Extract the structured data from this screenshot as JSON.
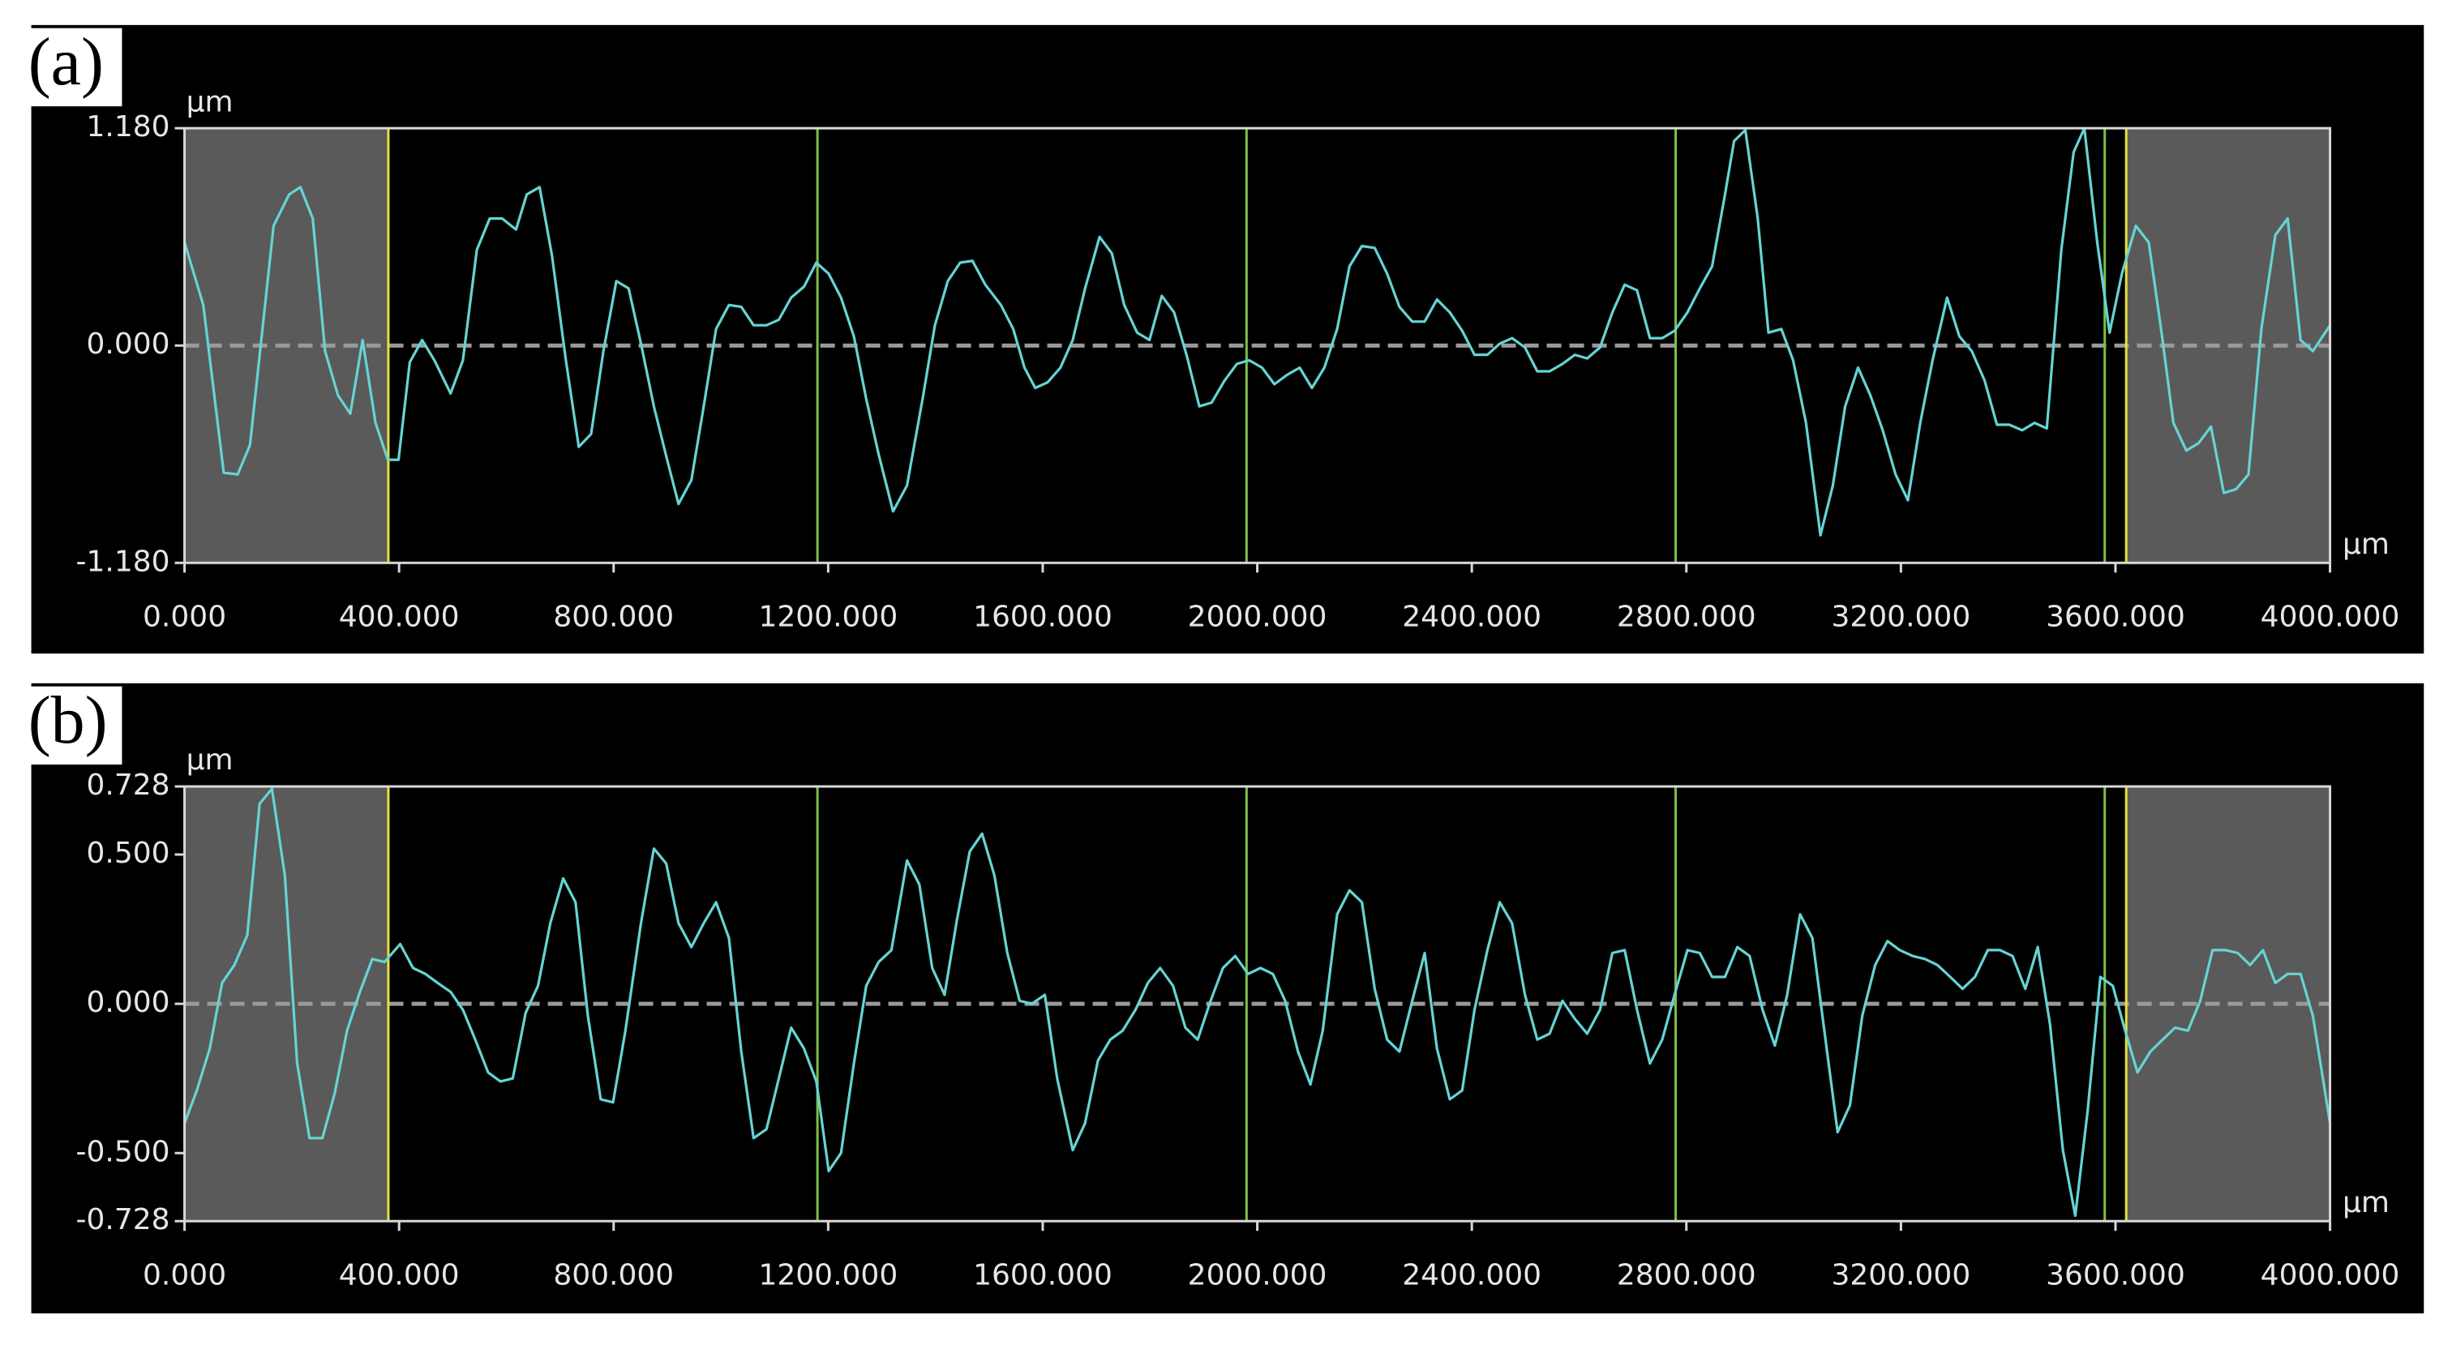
{
  "chart_data": [
    {
      "type": "line",
      "label": "(a)",
      "y_unit": "µm",
      "x_unit": "µm",
      "color": "#66d4d4",
      "background": "#000000",
      "zero_line": true,
      "xlim": [
        0,
        4000
      ],
      "ylim": [
        -1.18,
        1.18
      ],
      "xticks": [
        {
          "value": 0,
          "label": "0.000"
        },
        {
          "value": 400,
          "label": "400.000"
        },
        {
          "value": 800,
          "label": "800.000"
        },
        {
          "value": 1200,
          "label": "1200.000"
        },
        {
          "value": 1600,
          "label": "1600.000"
        },
        {
          "value": 2000,
          "label": "2000.000"
        },
        {
          "value": 2400,
          "label": "2400.000"
        },
        {
          "value": 2800,
          "label": "2800.000"
        },
        {
          "value": 3200,
          "label": "3200.000"
        },
        {
          "value": 3600,
          "label": "3600.000"
        },
        {
          "value": 4000,
          "label": "4000.000"
        }
      ],
      "yticks": [
        {
          "value": 1.18,
          "label": "1.180"
        },
        {
          "value": 0,
          "label": "0.000"
        },
        {
          "value": -1.18,
          "label": "-1.180"
        }
      ],
      "shaded_ranges": [
        [
          0,
          380
        ],
        [
          3620,
          4000
        ]
      ],
      "vlines": [
        {
          "x": 380,
          "color": "#e8e03c"
        },
        {
          "x": 1180,
          "color": "#7cc04a"
        },
        {
          "x": 1980,
          "color": "#7cc04a"
        },
        {
          "x": 2780,
          "color": "#7cc04a"
        },
        {
          "x": 3580,
          "color": "#7cc04a"
        },
        {
          "x": 3620,
          "color": "#e8e03c"
        }
      ],
      "x": [
        0,
        35,
        73,
        99,
        122,
        166,
        195,
        216,
        239,
        262,
        286,
        309,
        332,
        356,
        379,
        399,
        420,
        443,
        466,
        496,
        519,
        545,
        569,
        592,
        618,
        638,
        662,
        685,
        711,
        735,
        758,
        781,
        805,
        828,
        851,
        875,
        898,
        921,
        945,
        968,
        991,
        1015,
        1038,
        1061,
        1085,
        1108,
        1131,
        1155,
        1178,
        1201,
        1224,
        1248,
        1271,
        1294,
        1321,
        1347,
        1376,
        1399,
        1423,
        1446,
        1469,
        1493,
        1522,
        1545,
        1566,
        1586,
        1609,
        1633,
        1656,
        1679,
        1706,
        1729,
        1752,
        1776,
        1799,
        1822,
        1845,
        1869,
        1892,
        1915,
        1939,
        1962,
        1985,
        2009,
        2032,
        2055,
        2079,
        2102,
        2125,
        2149,
        2172,
        2195,
        2219,
        2242,
        2265,
        2289,
        2312,
        2335,
        2359,
        2382,
        2405,
        2429,
        2452,
        2475,
        2499,
        2522,
        2545,
        2569,
        2592,
        2615,
        2639,
        2662,
        2685,
        2708,
        2732,
        2755,
        2778,
        2802,
        2825,
        2848,
        2872,
        2889,
        2910,
        2933,
        2953,
        2977,
        2999,
        3023,
        3050,
        3073,
        3096,
        3120,
        3143,
        3166,
        3190,
        3213,
        3236,
        3259,
        3286,
        3309,
        3332,
        3356,
        3379,
        3402,
        3426,
        3449,
        3472,
        3499,
        3522,
        3542,
        3566,
        3589,
        3612,
        3638,
        3662,
        3685,
        3708,
        3732,
        3755,
        3778,
        3802,
        3825,
        3848,
        3872,
        3898,
        3921,
        3945,
        3968,
        4000
      ],
      "values": [
        0.56,
        0.22,
        -0.69,
        -0.7,
        -0.54,
        0.65,
        0.82,
        0.86,
        0.69,
        -0.03,
        -0.27,
        -0.37,
        0.03,
        -0.42,
        -0.62,
        -0.62,
        -0.09,
        0.03,
        -0.08,
        -0.26,
        -0.08,
        0.52,
        0.69,
        0.69,
        0.63,
        0.82,
        0.86,
        0.49,
        -0.08,
        -0.55,
        -0.48,
        -0.03,
        0.35,
        0.31,
        0.01,
        -0.33,
        -0.6,
        -0.86,
        -0.73,
        -0.33,
        0.09,
        0.22,
        0.21,
        0.11,
        0.11,
        0.14,
        0.26,
        0.32,
        0.45,
        0.39,
        0.26,
        0.05,
        -0.29,
        -0.59,
        -0.9,
        -0.76,
        -0.29,
        0.11,
        0.35,
        0.45,
        0.46,
        0.33,
        0.22,
        0.09,
        -0.12,
        -0.23,
        -0.2,
        -0.12,
        0.03,
        0.31,
        0.59,
        0.5,
        0.22,
        0.07,
        0.03,
        0.27,
        0.18,
        -0.06,
        -0.33,
        -0.31,
        -0.19,
        -0.1,
        -0.08,
        -0.12,
        -0.21,
        -0.16,
        -0.12,
        -0.23,
        -0.12,
        0.09,
        0.43,
        0.54,
        0.53,
        0.39,
        0.21,
        0.13,
        0.13,
        0.25,
        0.18,
        0.08,
        -0.05,
        -0.05,
        0.01,
        0.04,
        -0.01,
        -0.14,
        -0.14,
        -0.1,
        -0.05,
        -0.07,
        -0.01,
        0.18,
        0.33,
        0.3,
        0.04,
        0.04,
        0.08,
        0.18,
        0.31,
        0.43,
        0.82,
        1.11,
        1.17,
        0.69,
        0.07,
        0.09,
        -0.08,
        -0.42,
        -1.03,
        -0.76,
        -0.33,
        -0.12,
        -0.27,
        -0.46,
        -0.7,
        -0.84,
        -0.42,
        -0.08,
        0.26,
        0.05,
        -0.03,
        -0.19,
        -0.43,
        -0.43,
        -0.46,
        -0.42,
        -0.45,
        0.52,
        1.05,
        1.18,
        0.56,
        0.07,
        0.39,
        0.65,
        0.56,
        0.09,
        -0.42,
        -0.57,
        -0.53,
        -0.44,
        -0.8,
        -0.78,
        -0.7,
        0.09,
        0.6,
        0.69,
        0.03,
        -0.03,
        0.11
      ]
    },
    {
      "type": "line",
      "label": "(b)",
      "y_unit": "µm",
      "x_unit": "µm",
      "color": "#66d4d4",
      "background": "#000000",
      "zero_line": true,
      "xlim": [
        0,
        4000
      ],
      "ylim": [
        -0.728,
        0.728
      ],
      "xticks": [
        {
          "value": 0,
          "label": "0.000"
        },
        {
          "value": 400,
          "label": "400.000"
        },
        {
          "value": 800,
          "label": "800.000"
        },
        {
          "value": 1200,
          "label": "1200.000"
        },
        {
          "value": 1600,
          "label": "1600.000"
        },
        {
          "value": 2000,
          "label": "2000.000"
        },
        {
          "value": 2400,
          "label": "2400.000"
        },
        {
          "value": 2800,
          "label": "2800.000"
        },
        {
          "value": 3200,
          "label": "3200.000"
        },
        {
          "value": 3600,
          "label": "3600.000"
        },
        {
          "value": 4000,
          "label": "4000.000"
        }
      ],
      "yticks": [
        {
          "value": 0.728,
          "label": "0.728"
        },
        {
          "value": 0.5,
          "label": "0.500"
        },
        {
          "value": 0,
          "label": "0.000"
        },
        {
          "value": -0.5,
          "label": "-0.500"
        },
        {
          "value": -0.728,
          "label": "-0.728"
        }
      ],
      "shaded_ranges": [
        [
          0,
          380
        ],
        [
          3620,
          4000
        ]
      ],
      "vlines": [
        {
          "x": 380,
          "color": "#e8e03c"
        },
        {
          "x": 1180,
          "color": "#7cc04a"
        },
        {
          "x": 1980,
          "color": "#7cc04a"
        },
        {
          "x": 2780,
          "color": "#7cc04a"
        },
        {
          "x": 3580,
          "color": "#7cc04a"
        },
        {
          "x": 3620,
          "color": "#e8e03c"
        }
      ],
      "x": [
        0,
        23,
        47,
        70,
        93,
        117,
        140,
        163,
        187,
        210,
        233,
        257,
        280,
        303,
        327,
        350,
        373,
        402,
        426,
        449,
        472,
        496,
        519,
        542,
        566,
        589,
        612,
        636,
        659,
        682,
        706,
        729,
        752,
        776,
        799,
        822,
        851,
        875,
        898,
        921,
        945,
        968,
        991,
        1015,
        1038,
        1061,
        1085,
        1108,
        1131,
        1155,
        1178,
        1201,
        1224,
        1248,
        1271,
        1294,
        1318,
        1347,
        1370,
        1394,
        1417,
        1440,
        1464,
        1487,
        1510,
        1534,
        1557,
        1580,
        1604,
        1627,
        1656,
        1679,
        1703,
        1726,
        1749,
        1773,
        1796,
        1819,
        1843,
        1866,
        1889,
        1913,
        1936,
        1959,
        1983,
        2006,
        2029,
        2052,
        2076,
        2099,
        2122,
        2149,
        2172,
        2195,
        2219,
        2242,
        2265,
        2289,
        2312,
        2335,
        2359,
        2382,
        2405,
        2429,
        2452,
        2475,
        2499,
        2522,
        2545,
        2569,
        2592,
        2615,
        2639,
        2662,
        2685,
        2708,
        2732,
        2755,
        2778,
        2802,
        2825,
        2848,
        2872,
        2895,
        2918,
        2942,
        2965,
        2988,
        3012,
        3035,
        3058,
        3082,
        3105,
        3128,
        3152,
        3175,
        3198,
        3222,
        3245,
        3268,
        3292,
        3315,
        3338,
        3362,
        3385,
        3408,
        3432,
        3455,
        3478,
        3502,
        3525,
        3548,
        3572,
        3595,
        3618,
        3641,
        3665,
        3688,
        3711,
        3735,
        3758,
        3781,
        3805,
        3828,
        3851,
        3875,
        3898,
        3921,
        3945,
        3968,
        4000
      ],
      "values": [
        -0.4,
        -0.29,
        -0.15,
        0.07,
        0.13,
        0.23,
        0.67,
        0.72,
        0.43,
        -0.2,
        -0.45,
        -0.45,
        -0.3,
        -0.09,
        0.04,
        0.15,
        0.14,
        0.2,
        0.12,
        0.1,
        0.07,
        0.04,
        -0.02,
        -0.12,
        -0.23,
        -0.26,
        -0.25,
        -0.03,
        0.06,
        0.27,
        0.42,
        0.34,
        -0.04,
        -0.32,
        -0.33,
        -0.09,
        0.27,
        0.52,
        0.47,
        0.27,
        0.19,
        0.27,
        0.34,
        0.22,
        -0.16,
        -0.45,
        -0.42,
        -0.25,
        -0.08,
        -0.15,
        -0.26,
        -0.56,
        -0.5,
        -0.2,
        0.06,
        0.14,
        0.18,
        0.48,
        0.4,
        0.12,
        0.03,
        0.28,
        0.51,
        0.57,
        0.43,
        0.17,
        0.01,
        0.0,
        0.03,
        -0.25,
        -0.49,
        -0.4,
        -0.19,
        -0.12,
        -0.09,
        -0.02,
        0.07,
        0.12,
        0.06,
        -0.08,
        -0.12,
        0.01,
        0.12,
        0.16,
        0.1,
        0.12,
        0.1,
        0.01,
        -0.16,
        -0.27,
        -0.09,
        0.3,
        0.38,
        0.34,
        0.05,
        -0.12,
        -0.16,
        0.01,
        0.17,
        -0.15,
        -0.32,
        -0.29,
        -0.02,
        0.18,
        0.34,
        0.27,
        0.03,
        -0.12,
        -0.1,
        0.01,
        -0.05,
        -0.1,
        -0.02,
        0.17,
        0.18,
        -0.02,
        -0.2,
        -0.12,
        0.03,
        0.18,
        0.17,
        0.09,
        0.09,
        0.19,
        0.16,
        -0.02,
        -0.14,
        0.03,
        0.3,
        0.22,
        -0.1,
        -0.43,
        -0.34,
        -0.04,
        0.13,
        0.21,
        0.18,
        0.16,
        0.15,
        0.13,
        0.09,
        0.05,
        0.09,
        0.18,
        0.18,
        0.16,
        0.05,
        0.19,
        -0.07,
        -0.49,
        -0.71,
        -0.36,
        0.09,
        0.06,
        -0.09,
        -0.23,
        -0.16,
        -0.12,
        -0.08,
        -0.09,
        0.01,
        0.18,
        0.18,
        0.17,
        0.13,
        0.18,
        0.07,
        0.1,
        0.1,
        -0.04,
        -0.4
      ]
    }
  ]
}
